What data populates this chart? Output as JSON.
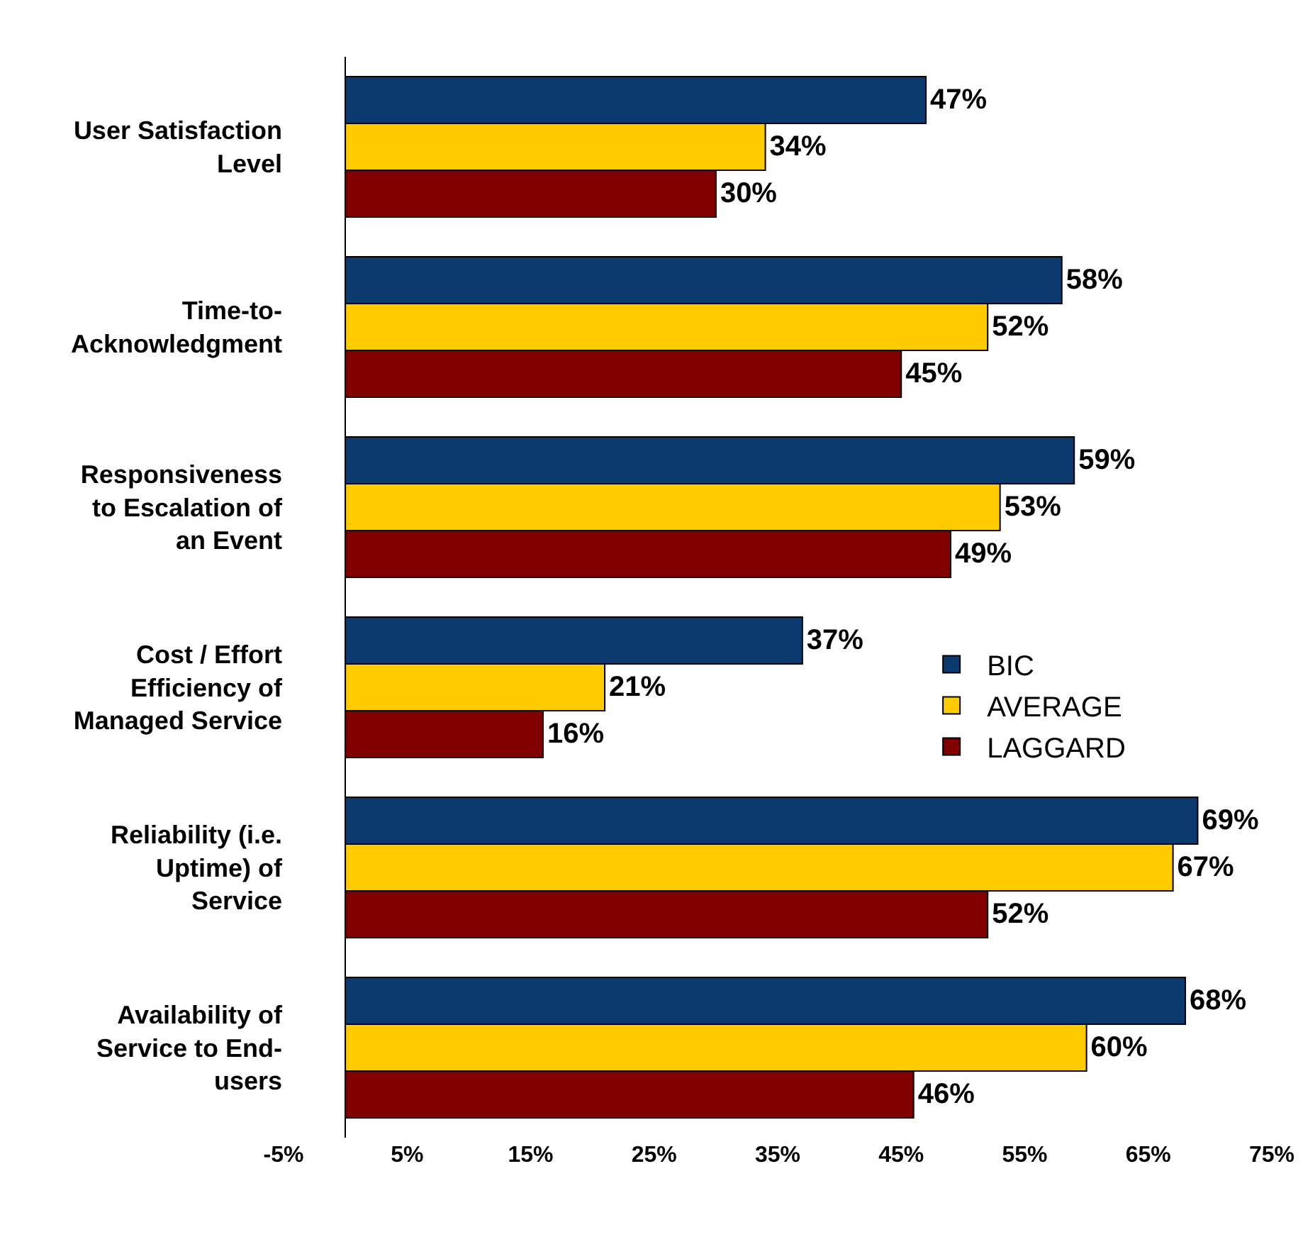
{
  "chart_data": {
    "type": "bar",
    "orientation": "horizontal",
    "categories": [
      "User Satisfaction\nLevel",
      "Time-to-\nAcknowledgment",
      "Responsiveness\nto Escalation of\nan Event",
      "Cost / Effort\nEfficiency of\nManaged Service",
      "Reliability (i.e.\nUptime) of\nService",
      "Availability of\nService to End-\nusers"
    ],
    "series": [
      {
        "name": "BIC",
        "color": "#0b3a6e",
        "values": [
          47,
          58,
          59,
          37,
          69,
          68
        ],
        "value_labels": [
          "47%",
          "58%",
          "59%",
          "37%",
          "69%",
          "68%"
        ]
      },
      {
        "name": "AVERAGE",
        "color": "#ffcc00",
        "values": [
          34,
          52,
          53,
          21,
          67,
          60
        ],
        "value_labels": [
          "34%",
          "52%",
          "53%",
          "21%",
          "67%",
          "60%"
        ]
      },
      {
        "name": "LAGGARD",
        "color": "#800000",
        "values": [
          30,
          45,
          49,
          16,
          52,
          46
        ],
        "value_labels": [
          "30%",
          "45%",
          "49%",
          "16%",
          "52%",
          "46%"
        ]
      }
    ],
    "xlim": [
      -5,
      75
    ],
    "xticks": [
      {
        "value": -5,
        "label": "-5%"
      },
      {
        "value": 5,
        "label": "5%"
      },
      {
        "value": 15,
        "label": "15%"
      },
      {
        "value": 25,
        "label": "25%"
      },
      {
        "value": 35,
        "label": "35%"
      },
      {
        "value": 45,
        "label": "45%"
      },
      {
        "value": 55,
        "label": "55%"
      },
      {
        "value": 65,
        "label": "65%"
      },
      {
        "value": 75,
        "label": "75%"
      }
    ],
    "grid": false,
    "legend": "right"
  }
}
